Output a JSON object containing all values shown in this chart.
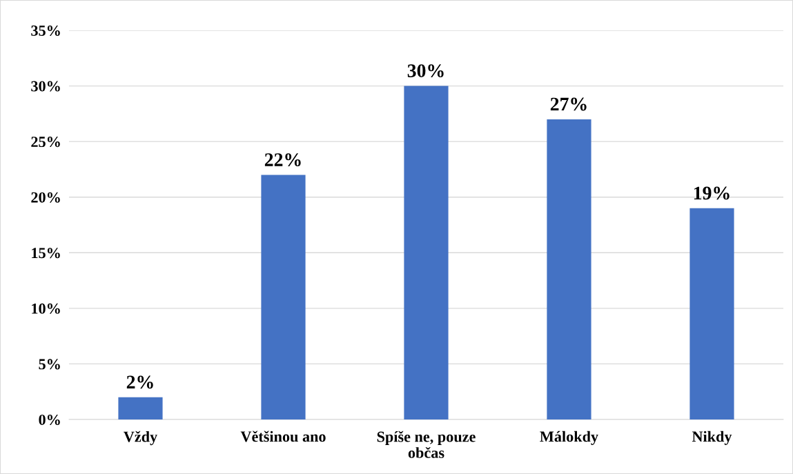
{
  "chart_data": {
    "type": "bar",
    "categories": [
      "Vždy",
      "Většinou ano",
      "Spíše ne, pouze občas",
      "Málokdy",
      "Nikdy"
    ],
    "values": [
      2,
      22,
      30,
      27,
      19
    ],
    "value_labels": [
      "2%",
      "22%",
      "30%",
      "27%",
      "19%"
    ],
    "color": "#4472c4",
    "ylim": [
      0,
      35
    ],
    "yticks": [
      {
        "value": 0,
        "label": "0%"
      },
      {
        "value": 5,
        "label": "5%"
      },
      {
        "value": 10,
        "label": "10%"
      },
      {
        "value": 15,
        "label": "15%"
      },
      {
        "value": 20,
        "label": "20%"
      },
      {
        "value": 25,
        "label": "25%"
      },
      {
        "value": 30,
        "label": "30%"
      },
      {
        "value": 35,
        "label": "35%"
      }
    ],
    "grid": "y"
  }
}
